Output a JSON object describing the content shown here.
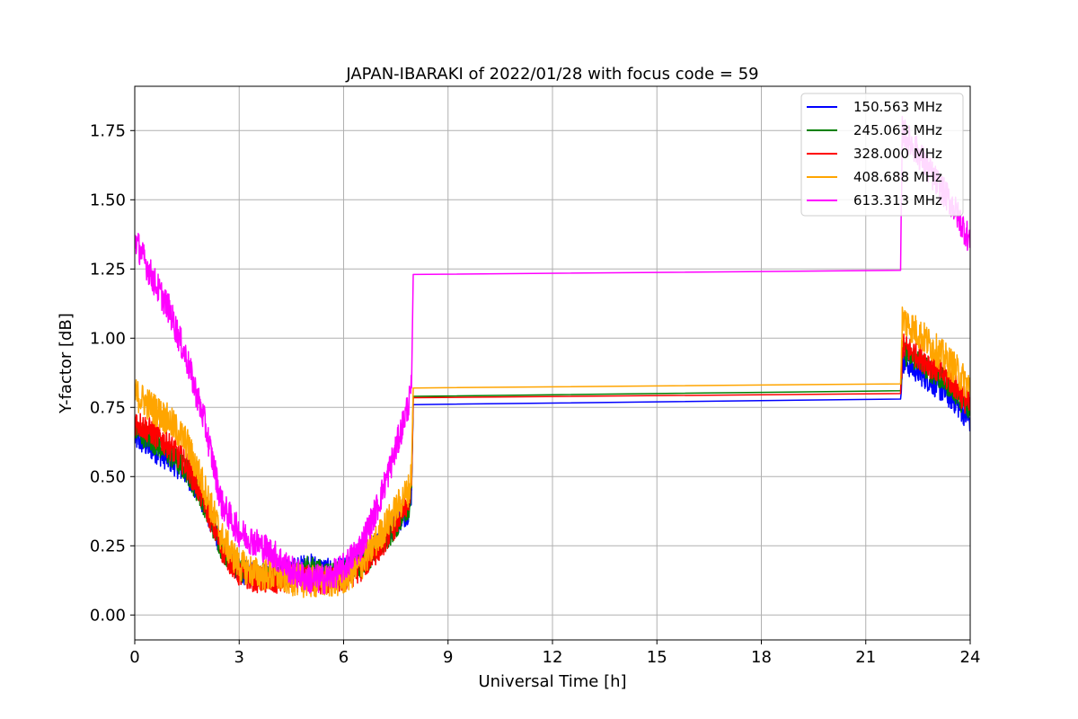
{
  "chart_data": {
    "type": "line",
    "title": "JAPAN-IBARAKI of 2022/01/28 with focus code = 59",
    "xlabel": "Universal Time [h]",
    "ylabel": "Y-factor [dB]",
    "xlim": [
      0,
      24
    ],
    "ylim": [
      -0.09,
      1.91
    ],
    "xticks": [
      0,
      3,
      6,
      9,
      12,
      15,
      18,
      21,
      24
    ],
    "xtick_labels": [
      "0",
      "3",
      "6",
      "9",
      "12",
      "15",
      "18",
      "21",
      "24"
    ],
    "yticks": [
      0.0,
      0.25,
      0.5,
      0.75,
      1.0,
      1.25,
      1.5,
      1.75
    ],
    "ytick_labels": [
      "0.00",
      "0.25",
      "0.50",
      "0.75",
      "1.00",
      "1.25",
      "1.50",
      "1.75"
    ],
    "grid": true,
    "legend_position": "top-right",
    "series": [
      {
        "name": "150.563 MHz",
        "color": "#0000ff",
        "x": [
          0,
          0.5,
          1,
          1.5,
          2,
          2.5,
          3,
          3.5,
          4,
          4.5,
          5,
          5.5,
          6,
          6.5,
          7,
          7.5,
          7.9,
          7.95,
          8.0,
          22.0,
          22.05,
          22.5,
          23,
          23.5,
          24
        ],
        "y": [
          0.64,
          0.6,
          0.56,
          0.51,
          0.4,
          0.24,
          0.16,
          0.14,
          0.15,
          0.16,
          0.18,
          0.16,
          0.16,
          0.2,
          0.26,
          0.33,
          0.38,
          0.45,
          0.76,
          0.78,
          0.92,
          0.88,
          0.83,
          0.78,
          0.7
        ],
        "noise": 0.045
      },
      {
        "name": "245.063 MHz",
        "color": "#008000",
        "x": [
          0,
          0.5,
          1,
          1.5,
          2,
          2.5,
          3,
          3.5,
          4,
          4.5,
          5,
          5.5,
          6,
          6.5,
          7,
          7.5,
          7.9,
          7.95,
          8.0,
          22.0,
          22.05,
          22.5,
          23,
          23.5,
          24
        ],
        "y": [
          0.67,
          0.63,
          0.58,
          0.52,
          0.4,
          0.24,
          0.16,
          0.14,
          0.14,
          0.15,
          0.17,
          0.15,
          0.15,
          0.18,
          0.24,
          0.32,
          0.4,
          0.46,
          0.79,
          0.81,
          0.95,
          0.92,
          0.87,
          0.82,
          0.73
        ],
        "noise": 0.045
      },
      {
        "name": "328.000 MHz",
        "color": "#ff0000",
        "x": [
          0,
          0.5,
          1,
          1.5,
          2,
          2.5,
          3,
          3.5,
          4,
          4.5,
          5,
          5.5,
          6,
          6.5,
          7,
          7.5,
          7.9,
          7.95,
          8.0,
          22.0,
          22.05,
          22.5,
          23,
          23.5,
          24
        ],
        "y": [
          0.7,
          0.66,
          0.61,
          0.54,
          0.41,
          0.24,
          0.15,
          0.13,
          0.12,
          0.13,
          0.13,
          0.12,
          0.13,
          0.17,
          0.24,
          0.33,
          0.42,
          0.47,
          0.785,
          0.8,
          0.97,
          0.94,
          0.89,
          0.84,
          0.75
        ],
        "noise": 0.05
      },
      {
        "name": "408.688 MHz",
        "color": "#ffa500",
        "x": [
          0,
          0.5,
          1,
          1.5,
          2,
          2.5,
          3,
          3.5,
          4,
          4.5,
          5,
          5.5,
          6,
          6.5,
          7,
          7.5,
          7.9,
          7.95,
          8.0,
          22.0,
          22.05,
          22.5,
          23,
          23.5,
          24
        ],
        "y": [
          0.8,
          0.75,
          0.7,
          0.62,
          0.46,
          0.28,
          0.18,
          0.15,
          0.14,
          0.13,
          0.12,
          0.12,
          0.13,
          0.18,
          0.28,
          0.38,
          0.46,
          0.52,
          0.82,
          0.835,
          1.07,
          1.02,
          0.96,
          0.9,
          0.82
        ],
        "noise": 0.06
      },
      {
        "name": "613.313 MHz",
        "color": "#ff00ff",
        "x": [
          0,
          0.5,
          1,
          1.5,
          2,
          2.5,
          3,
          3.5,
          4,
          4.5,
          5,
          5.5,
          6,
          6.5,
          7,
          7.5,
          7.9,
          7.95,
          8.0,
          22.0,
          22.05,
          22.5,
          23,
          23.5,
          24
        ],
        "y": [
          1.36,
          1.22,
          1.1,
          0.92,
          0.7,
          0.4,
          0.3,
          0.26,
          0.22,
          0.16,
          0.13,
          0.13,
          0.17,
          0.25,
          0.4,
          0.6,
          0.78,
          0.82,
          1.23,
          1.245,
          1.75,
          1.67,
          1.57,
          1.48,
          1.35
        ],
        "noise": 0.055
      }
    ]
  }
}
